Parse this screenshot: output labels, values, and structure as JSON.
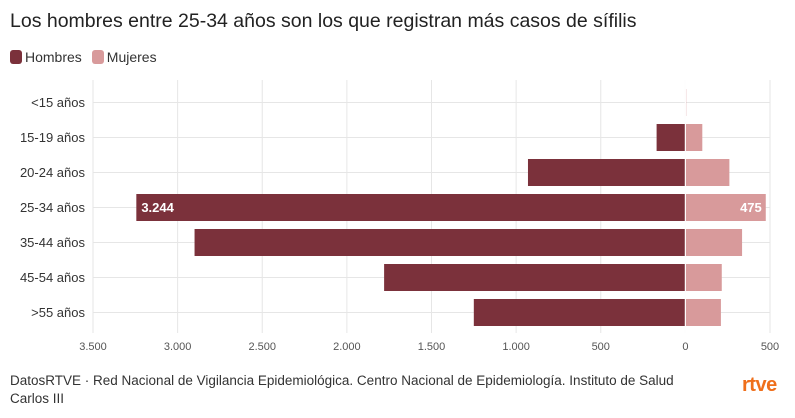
{
  "title": "Los hombres entre 25-34 años son los que registran más casos de sífilis",
  "footer": "DatosRTVE · Red Nacional de Vigilancia Epidemiológica. Centro Nacional de Epidemiología. Instituto de Salud Carlos III",
  "logo": "rtve",
  "colors": {
    "hombres": "#7b313b",
    "mujeres": "#d89a9b",
    "grid": "#e6e6e6",
    "logo": "#ef6f1b"
  },
  "chart_data": {
    "type": "bar",
    "orientation": "horizontal-diverging",
    "title": "Los hombres entre 25-34 años son los que registran más casos de sífilis",
    "categories": [
      "<15 años",
      "15-19 años",
      "20-24 años",
      "25-34 años",
      "35-44 años",
      "45-54 años",
      ">55 años"
    ],
    "series": [
      {
        "name": "Hombres",
        "values": [
          2,
          170,
          930,
          3244,
          2900,
          1780,
          1250
        ],
        "direction": "left"
      },
      {
        "name": "Mujeres",
        "values": [
          5,
          100,
          260,
          475,
          335,
          215,
          210
        ],
        "direction": "right"
      }
    ],
    "data_labels": [
      {
        "category": "25-34 años",
        "series": "Hombres",
        "text": "3.244"
      },
      {
        "category": "25-34 años",
        "series": "Mujeres",
        "text": "475"
      }
    ],
    "xlim": [
      -3500,
      500
    ],
    "x_ticks": [
      -3500,
      -3000,
      -2500,
      -2000,
      -1500,
      -1000,
      -500,
      0,
      500
    ],
    "x_tick_labels": [
      "3.500",
      "3.000",
      "2.500",
      "2.000",
      "1.500",
      "1.000",
      "500",
      "0",
      "500"
    ],
    "grid": true,
    "legend": "top-left"
  }
}
